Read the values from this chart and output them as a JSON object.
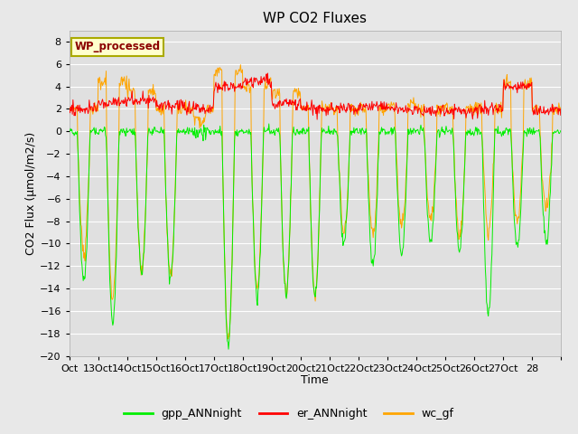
{
  "title": "WP CO2 Fluxes",
  "xlabel": "Time",
  "ylabel": "CO2 Flux (μmol/m2/s)",
  "ylim": [
    -20,
    9
  ],
  "bg_color": "#e8e8e8",
  "plot_bg_color": "#e0e0e0",
  "grid_color": "#ffffff",
  "annotation_text": "WP_processed",
  "annotation_color": "#8b0000",
  "annotation_bg": "#ffffcc",
  "annotation_border": "#aaaa00",
  "line_colors": {
    "gpp": "#00ee00",
    "er": "#ff0000",
    "wc": "#ffa500"
  },
  "legend_labels": [
    "gpp_ANNnight",
    "er_ANNnight",
    "wc_gf"
  ],
  "x_tick_labels": [
    "Oct",
    "13Oct",
    "14Oct",
    "15Oct",
    "16Oct",
    "17Oct",
    "18Oct",
    "19Oct",
    "20Oct",
    "21Oct",
    "22Oct",
    "23Oct",
    "24Oct",
    "25Oct",
    "26Oct",
    "27Oct",
    "28"
  ],
  "n_points": 816,
  "n_days": 17
}
